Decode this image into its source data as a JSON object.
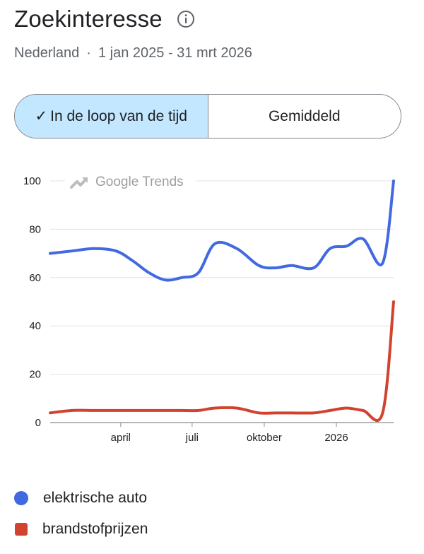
{
  "header": {
    "title": "Zoekinteresse",
    "region": "Nederland",
    "separator": "·",
    "period": "1 jan 2025 - 31 mrt 2026"
  },
  "toggle": {
    "option_over_time": "In de loop van de tijd",
    "option_average": "Gemiddeld",
    "selected": "In de loop van de tijd"
  },
  "watermark": "Google Trends",
  "chart_data": {
    "type": "line",
    "title": "",
    "xlabel": "",
    "ylabel": "",
    "ylim": [
      0,
      100
    ],
    "yticks": [
      0,
      20,
      40,
      60,
      80,
      100
    ],
    "xticks": [
      {
        "label": "april",
        "date": "2025-04-01"
      },
      {
        "label": "juli",
        "date": "2025-07-01"
      },
      {
        "label": "oktober",
        "date": "2025-10-01"
      },
      {
        "label": "2026",
        "date": "2026-01-01"
      }
    ],
    "x": [
      "2025-01-01",
      "2025-01-29",
      "2025-02-26",
      "2025-03-26",
      "2025-04-16",
      "2025-05-07",
      "2025-05-28",
      "2025-06-18",
      "2025-07-09",
      "2025-07-30",
      "2025-08-27",
      "2025-09-24",
      "2025-10-15",
      "2025-11-05",
      "2025-12-03",
      "2025-12-24",
      "2026-01-14",
      "2026-02-04",
      "2026-03-01",
      "2026-03-15"
    ],
    "grid": "horizontal",
    "legend": "bottom",
    "series": [
      {
        "name": "elektrische auto",
        "color": "#4169e1",
        "values": [
          70,
          71,
          72,
          71,
          67,
          62,
          59,
          60,
          62,
          74,
          72,
          65,
          64,
          65,
          64,
          72,
          73,
          76,
          66,
          100
        ]
      },
      {
        "name": "brandstofprijzen",
        "color": "#d1432e",
        "values": [
          4,
          5,
          5,
          5,
          5,
          5,
          5,
          5,
          5,
          6,
          6,
          4,
          4,
          4,
          4,
          5,
          6,
          5,
          4,
          50
        ]
      }
    ]
  }
}
